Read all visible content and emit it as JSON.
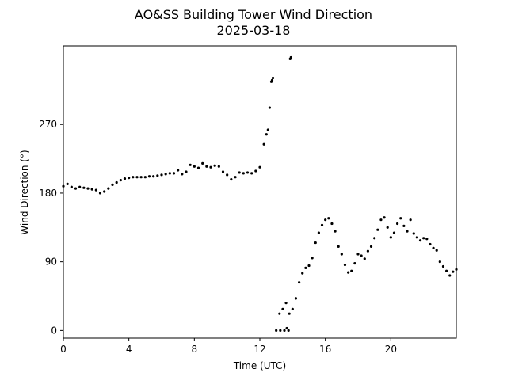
{
  "chart_data": {
    "type": "scatter",
    "title": "AO&SS Building Tower Wind Direction",
    "subtitle": "2025-03-18",
    "xlabel": "Time (UTC)",
    "ylabel": "Wind Direction (°)",
    "xlim": [
      0,
      24
    ],
    "ylim": [
      -10,
      373
    ],
    "xticks": [
      0,
      4,
      8,
      12,
      16,
      20
    ],
    "yticks": [
      0,
      90,
      180,
      270
    ],
    "grid": false,
    "marker_color": "#000000",
    "series": [
      {
        "points": [
          [
            0.0,
            189
          ],
          [
            0.25,
            192
          ],
          [
            0.5,
            188
          ],
          [
            0.75,
            186
          ],
          [
            1.0,
            188
          ],
          [
            1.25,
            187
          ],
          [
            1.5,
            186
          ],
          [
            1.75,
            185
          ],
          [
            2.0,
            184
          ],
          [
            2.25,
            180
          ],
          [
            2.5,
            182
          ],
          [
            2.75,
            186
          ],
          [
            3.0,
            191
          ],
          [
            3.25,
            194
          ],
          [
            3.5,
            197
          ],
          [
            3.75,
            199
          ],
          [
            4.0,
            200
          ],
          [
            4.25,
            201
          ],
          [
            4.5,
            201
          ],
          [
            4.75,
            201
          ],
          [
            5.0,
            201
          ],
          [
            5.25,
            202
          ],
          [
            5.5,
            202
          ],
          [
            5.75,
            203
          ],
          [
            6.0,
            204
          ],
          [
            6.25,
            205
          ],
          [
            6.5,
            206
          ],
          [
            6.75,
            206
          ],
          [
            7.0,
            210
          ],
          [
            7.25,
            205
          ],
          [
            7.5,
            208
          ],
          [
            7.75,
            217
          ],
          [
            8.0,
            215
          ],
          [
            8.25,
            213
          ],
          [
            8.5,
            219
          ],
          [
            8.75,
            215
          ],
          [
            9.0,
            214
          ],
          [
            9.25,
            216
          ],
          [
            9.5,
            215
          ],
          [
            9.75,
            208
          ],
          [
            10.0,
            204
          ],
          [
            10.25,
            198
          ],
          [
            10.5,
            201
          ],
          [
            10.75,
            207
          ],
          [
            11.0,
            206
          ],
          [
            11.25,
            207
          ],
          [
            11.5,
            206
          ],
          [
            11.75,
            209
          ],
          [
            12.0,
            214
          ],
          [
            12.25,
            244
          ],
          [
            12.4,
            257
          ],
          [
            12.5,
            263
          ],
          [
            12.6,
            292
          ],
          [
            12.7,
            326
          ],
          [
            12.75,
            328
          ],
          [
            12.8,
            331
          ],
          [
            13.0,
            0
          ],
          [
            13.25,
            0
          ],
          [
            13.5,
            0
          ],
          [
            13.75,
            0
          ],
          [
            13.2,
            22
          ],
          [
            13.4,
            28
          ],
          [
            13.6,
            36
          ],
          [
            13.65,
            3
          ],
          [
            13.8,
            22
          ],
          [
            14.0,
            28
          ],
          [
            14.2,
            42
          ],
          [
            14.4,
            63
          ],
          [
            14.6,
            75
          ],
          [
            14.8,
            82
          ],
          [
            15.0,
            85
          ],
          [
            15.2,
            95
          ],
          [
            15.4,
            115
          ],
          [
            15.6,
            128
          ],
          [
            15.8,
            138
          ],
          [
            16.0,
            145
          ],
          [
            16.2,
            147
          ],
          [
            16.4,
            140
          ],
          [
            16.6,
            130
          ],
          [
            16.8,
            110
          ],
          [
            17.0,
            100
          ],
          [
            17.2,
            86
          ],
          [
            17.4,
            76
          ],
          [
            17.6,
            78
          ],
          [
            17.8,
            88
          ],
          [
            18.0,
            100
          ],
          [
            18.2,
            98
          ],
          [
            18.4,
            94
          ],
          [
            18.6,
            104
          ],
          [
            18.8,
            110
          ],
          [
            19.0,
            121
          ],
          [
            19.2,
            132
          ],
          [
            19.4,
            145
          ],
          [
            19.6,
            148
          ],
          [
            19.8,
            135
          ],
          [
            20.0,
            122
          ],
          [
            20.2,
            128
          ],
          [
            20.4,
            140
          ],
          [
            20.6,
            147
          ],
          [
            20.8,
            137
          ],
          [
            21.0,
            130
          ],
          [
            21.2,
            145
          ],
          [
            21.4,
            127
          ],
          [
            21.6,
            122
          ],
          [
            21.8,
            118
          ],
          [
            22.0,
            121
          ],
          [
            22.2,
            120
          ],
          [
            22.4,
            113
          ],
          [
            22.6,
            108
          ],
          [
            22.8,
            105
          ],
          [
            23.0,
            90
          ],
          [
            23.2,
            84
          ],
          [
            23.4,
            78
          ],
          [
            23.6,
            72
          ],
          [
            23.8,
            77
          ],
          [
            24.0,
            80
          ],
          [
            13.85,
            356
          ],
          [
            13.9,
            358
          ]
        ]
      }
    ]
  }
}
